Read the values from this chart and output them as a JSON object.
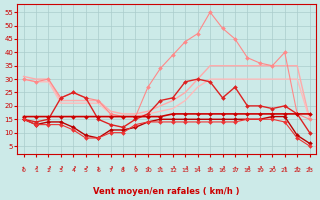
{
  "x": [
    0,
    1,
    2,
    3,
    4,
    5,
    6,
    7,
    8,
    9,
    10,
    11,
    12,
    13,
    14,
    15,
    16,
    17,
    18,
    19,
    20,
    21,
    22,
    23
  ],
  "series": [
    {
      "label": "rafales_peak",
      "color": "#ff8888",
      "linewidth": 0.8,
      "marker": "D",
      "markersize": 2.0,
      "values": [
        30,
        29,
        30,
        23,
        25,
        23,
        22,
        17,
        16,
        16,
        27,
        34,
        39,
        44,
        47,
        55,
        49,
        45,
        38,
        36,
        35,
        40,
        17,
        15
      ]
    },
    {
      "label": "rafales_upper",
      "color": "#ffaaaa",
      "linewidth": 1.0,
      "marker": null,
      "markersize": 0,
      "values": [
        31,
        30,
        30,
        22,
        22,
        22,
        22,
        18,
        17,
        17,
        18,
        20,
        22,
        25,
        30,
        35,
        35,
        35,
        35,
        35,
        35,
        35,
        35,
        15
      ]
    },
    {
      "label": "rafales_lower",
      "color": "#ffbbbb",
      "linewidth": 1.0,
      "marker": null,
      "markersize": 0,
      "values": [
        30,
        29,
        29,
        21,
        21,
        21,
        21,
        17,
        16,
        16,
        17,
        18,
        19,
        22,
        27,
        30,
        30,
        30,
        30,
        30,
        30,
        30,
        30,
        15
      ]
    },
    {
      "label": "vent_max",
      "color": "#dd2222",
      "linewidth": 1.0,
      "marker": "D",
      "markersize": 2.0,
      "values": [
        15,
        14,
        15,
        23,
        25,
        23,
        15,
        13,
        12,
        15,
        17,
        22,
        23,
        29,
        30,
        29,
        23,
        27,
        20,
        20,
        19,
        20,
        17,
        10
      ]
    },
    {
      "label": "vent_moy_upper",
      "color": "#cc0000",
      "linewidth": 1.2,
      "marker": "D",
      "markersize": 2.0,
      "values": [
        16,
        16,
        16,
        16,
        16,
        16,
        16,
        16,
        16,
        16,
        16,
        16,
        17,
        17,
        17,
        17,
        17,
        17,
        17,
        17,
        17,
        17,
        17,
        17
      ]
    },
    {
      "label": "vent_moy_lower",
      "color": "#bb0000",
      "linewidth": 1.0,
      "marker": "D",
      "markersize": 2.0,
      "values": [
        15,
        13,
        14,
        14,
        12,
        9,
        8,
        11,
        11,
        12,
        14,
        15,
        15,
        15,
        15,
        15,
        15,
        15,
        15,
        15,
        16,
        16,
        9,
        6
      ]
    },
    {
      "label": "vent_min",
      "color": "#ee3333",
      "linewidth": 0.8,
      "marker": "D",
      "markersize": 2.0,
      "values": [
        15,
        13,
        13,
        13,
        11,
        8,
        8,
        10,
        10,
        13,
        14,
        14,
        14,
        14,
        14,
        14,
        14,
        14,
        15,
        15,
        15,
        14,
        8,
        5
      ]
    }
  ],
  "xlabel": "Vent moyen/en rafales ( km/h )",
  "ylim": [
    2,
    58
  ],
  "xlim": [
    -0.5,
    23.5
  ],
  "yticks": [
    5,
    10,
    15,
    20,
    25,
    30,
    35,
    40,
    45,
    50,
    55
  ],
  "xticks": [
    0,
    1,
    2,
    3,
    4,
    5,
    6,
    7,
    8,
    9,
    10,
    11,
    12,
    13,
    14,
    15,
    16,
    17,
    18,
    19,
    20,
    21,
    22,
    23
  ],
  "bg_color": "#cceae8",
  "grid_color": "#aacccc",
  "xlabel_color": "#cc0000",
  "tick_color": "#cc0000",
  "arrow_chars": [
    "↑",
    "↗",
    "↗",
    "↗",
    "↗",
    "↗",
    "↑",
    "↗",
    "↑",
    "↖",
    "↑",
    "↑",
    "↗",
    "↗",
    "↗",
    "↑",
    "↗",
    "↑",
    "↗",
    "↗",
    "↗",
    "↑",
    "↑",
    "↑"
  ]
}
